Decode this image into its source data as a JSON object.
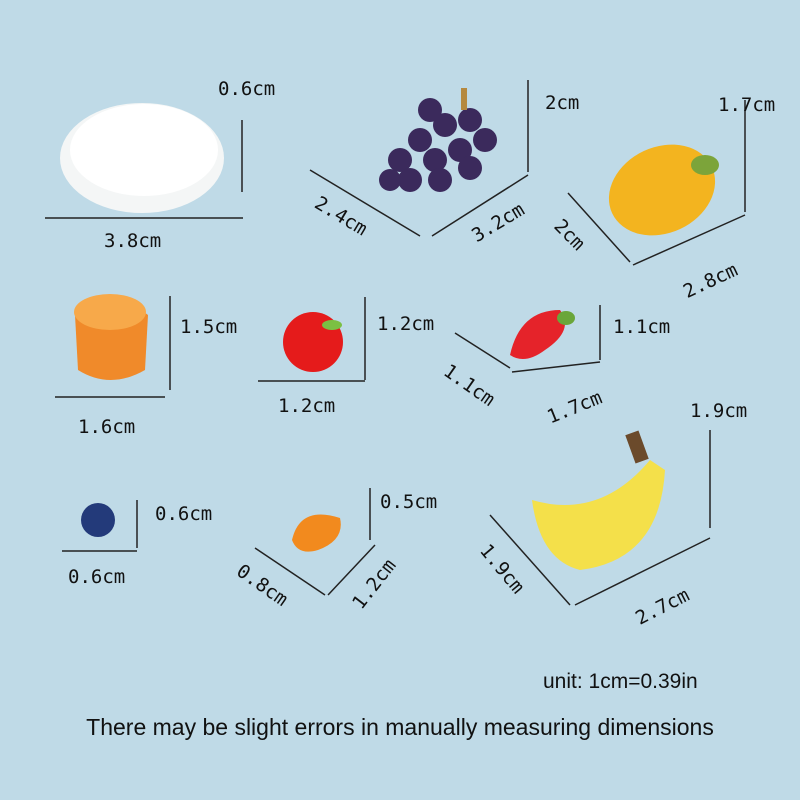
{
  "items": [
    {
      "name": "plate",
      "dims": [
        "0.6cm",
        "3.8cm"
      ]
    },
    {
      "name": "grapes",
      "dims": [
        "2cm",
        "2.4cm",
        "3.2cm"
      ]
    },
    {
      "name": "mango",
      "dims": [
        "1.7cm",
        "2cm",
        "2.8cm"
      ]
    },
    {
      "name": "orange",
      "dims": [
        "1.5cm",
        "1.6cm"
      ]
    },
    {
      "name": "apple",
      "dims": [
        "1.2cm",
        "1.2cm"
      ]
    },
    {
      "name": "strawberry",
      "dims": [
        "1.1cm",
        "1.1cm",
        "1.7cm"
      ]
    },
    {
      "name": "blueberry",
      "dims": [
        "0.6cm",
        "0.6cm"
      ]
    },
    {
      "name": "orange-slice",
      "dims": [
        "0.5cm",
        "0.8cm",
        "1.2cm"
      ]
    },
    {
      "name": "banana",
      "dims": [
        "1.9cm",
        "1.9cm",
        "2.7cm"
      ]
    }
  ],
  "unit_note": "unit: 1cm=0.39in",
  "disclaimer": "There may be slight errors in manually measuring dimensions",
  "colors": {
    "background": "#bfdae7"
  }
}
